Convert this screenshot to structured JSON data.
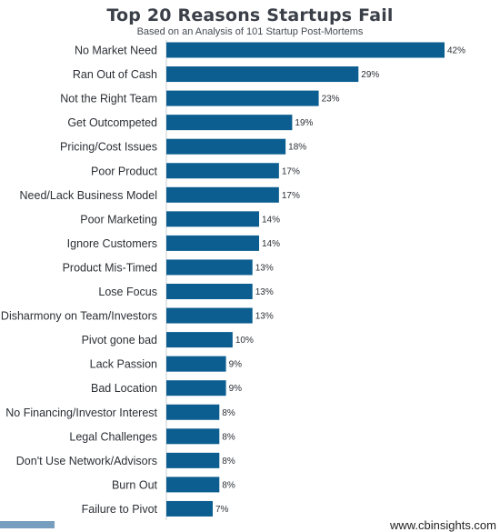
{
  "chart_data": {
    "type": "bar",
    "orientation": "horizontal",
    "title": "Top 20 Reasons Startups Fail",
    "subtitle": "Based on an Analysis of 101 Startup Post-Mortems",
    "categories": [
      "No Market Need",
      "Ran Out of Cash",
      "Not the Right Team",
      "Get Outcompeted",
      "Pricing/Cost Issues",
      "Poor Product",
      "Need/Lack Business Model",
      "Poor Marketing",
      "Ignore Customers",
      "Product Mis-Timed",
      "Lose Focus",
      "Disharmony on Team/Investors",
      "Pivot gone bad",
      "Lack Passion",
      "Bad Location",
      "No Financing/Investor Interest",
      "Legal Challenges",
      "Don't Use Network/Advisors",
      "Burn Out",
      "Failure to Pivot"
    ],
    "values": [
      42,
      29,
      23,
      19,
      18,
      17,
      17,
      14,
      14,
      13,
      13,
      13,
      10,
      9,
      9,
      8,
      8,
      8,
      8,
      7
    ],
    "value_labels": [
      "42%",
      "29%",
      "23%",
      "19%",
      "18%",
      "17%",
      "17%",
      "14%",
      "14%",
      "13%",
      "13%",
      "13%",
      "10%",
      "9%",
      "9%",
      "8%",
      "8%",
      "8%",
      "8%",
      "7%"
    ],
    "xlim": [
      0,
      42
    ],
    "grid": false,
    "bar_color": "#0b5e8f"
  },
  "footer": {
    "url": "www.cbinsights.com"
  }
}
